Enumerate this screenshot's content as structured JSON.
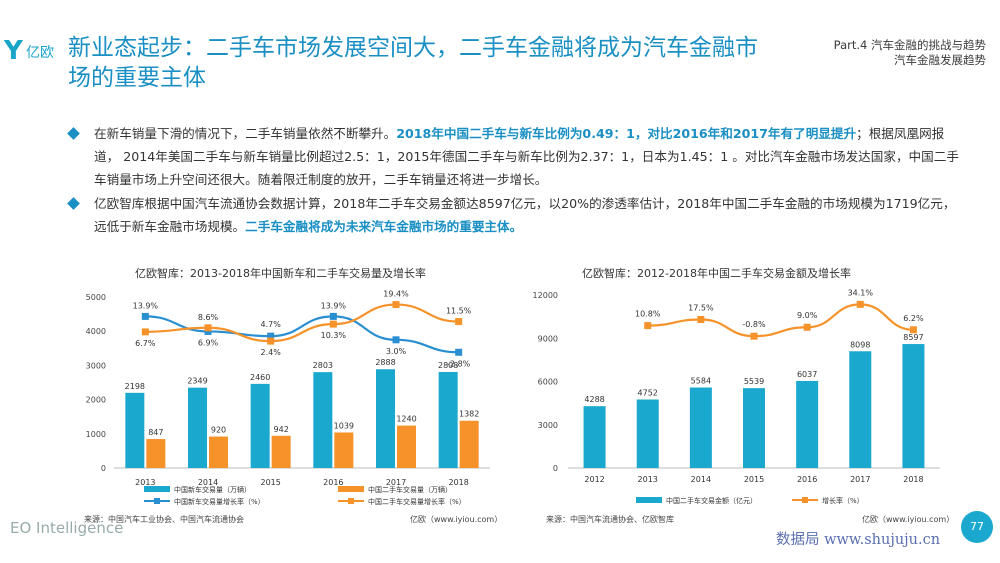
{
  "header": {
    "logo_text": "亿欧",
    "title": "新业态起步：二手车市场发展空间大，二手车金融将成为汽车金融市场的重要主体",
    "part_line1": "Part.4 汽车金融的挑战与趋势",
    "part_line2": "汽车金融发展趋势"
  },
  "bullets": {
    "b1_a": "在新车销量下滑的情况下，二手车销量依然不断攀升。",
    "b1_b": "2018年中国二手车与新车比例为0.49：1，对比2016年和2017年有了明显提升",
    "b1_c": "；根据凤凰网报道， 2014年美国二手车与新车销量比例超过2.5：1，2015年德国二手车与新车比例为2.37：1，日本为1.45：1 。对比汽车金融市场发达国家，中国二手车销量市场上升空间还很大。随着限迁制度的放开，二手车销量还将进一步增长。",
    "b2_a": "亿欧智库根据中国汽车流通协会数据计算，2018年二手车交易金额达8597亿元，以20%的渗透率估计，2018年中国二手车金融的市场规模为1719亿元，远低于新车金融市场规模。",
    "b2_b": "二手车金融将成为未来汽车金融市场的重要主体。"
  },
  "chart_data": [
    {
      "type": "bar",
      "title": "亿欧智库：2013-2018年中国新车和二手车交易量及增长率",
      "categories": [
        "2013",
        "2014",
        "2015",
        "2016",
        "2017",
        "2018"
      ],
      "y_ticks": [
        "0",
        "1000",
        "2000",
        "3000",
        "4000",
        "5000"
      ],
      "ylim": [
        0,
        5000
      ],
      "series": [
        {
          "name": "中国新车交易量（万辆）",
          "kind": "bar",
          "color": "#1aa8cf",
          "values": [
            2198,
            2349,
            2460,
            2803,
            2888,
            2808
          ]
        },
        {
          "name": "中国二手车交易量（万辆）",
          "kind": "bar",
          "color": "#f5922a",
          "values": [
            847,
            920,
            942,
            1039,
            1240,
            1382
          ]
        },
        {
          "name": "中国新车交易量增长率（%）",
          "kind": "line",
          "color": "#2a8fd0",
          "values": [
            13.9,
            6.9,
            4.7,
            13.9,
            3.0,
            -2.8
          ],
          "labels": [
            "13.9%",
            "6.9%",
            "4.7%",
            "13.9%",
            "3.0%",
            "-2.8%"
          ]
        },
        {
          "name": "中国二手车交易量增长率（%）",
          "kind": "line",
          "color": "#f5922a",
          "values": [
            6.7,
            8.6,
            2.4,
            10.3,
            19.4,
            11.5
          ],
          "labels": [
            "6.7%",
            "8.6%",
            "2.4%",
            "10.3%",
            "19.4%",
            "11.5%"
          ]
        }
      ],
      "source": "来源：中国汽车工业协会、中国汽车流通协会",
      "credit": "亿欧（www.iyiou.com）"
    },
    {
      "type": "bar",
      "title": "亿欧智库：2012-2018年中国二手车交易金额及增长率",
      "categories": [
        "2012",
        "2013",
        "2014",
        "2015",
        "2016",
        "2017",
        "2018"
      ],
      "y_ticks": [
        "0",
        "3000",
        "6000",
        "9000",
        "12000"
      ],
      "ylim": [
        0,
        12000
      ],
      "series": [
        {
          "name": "中国二手车交易金额（亿元）",
          "kind": "bar",
          "color": "#1aa8cf",
          "values": [
            4288,
            4752,
            5584,
            5539,
            6037,
            8098,
            8597
          ]
        },
        {
          "name": "增长率（%）",
          "kind": "line",
          "color": "#f5922a",
          "values": [
            null,
            10.8,
            17.5,
            -0.8,
            9.0,
            34.1,
            6.2
          ],
          "labels": [
            "",
            "10.8%",
            "17.5%",
            "-0.8%",
            "9.0%",
            "34.1%",
            "6.2%"
          ]
        }
      ],
      "source": "来源：中国汽车流通协会、亿欧智库",
      "credit": "亿欧（www.iyiou.com）"
    }
  ],
  "footer": {
    "eo": "EO Intelligence",
    "page": "77",
    "watermark": "数据局 www.shujuju.cn"
  }
}
